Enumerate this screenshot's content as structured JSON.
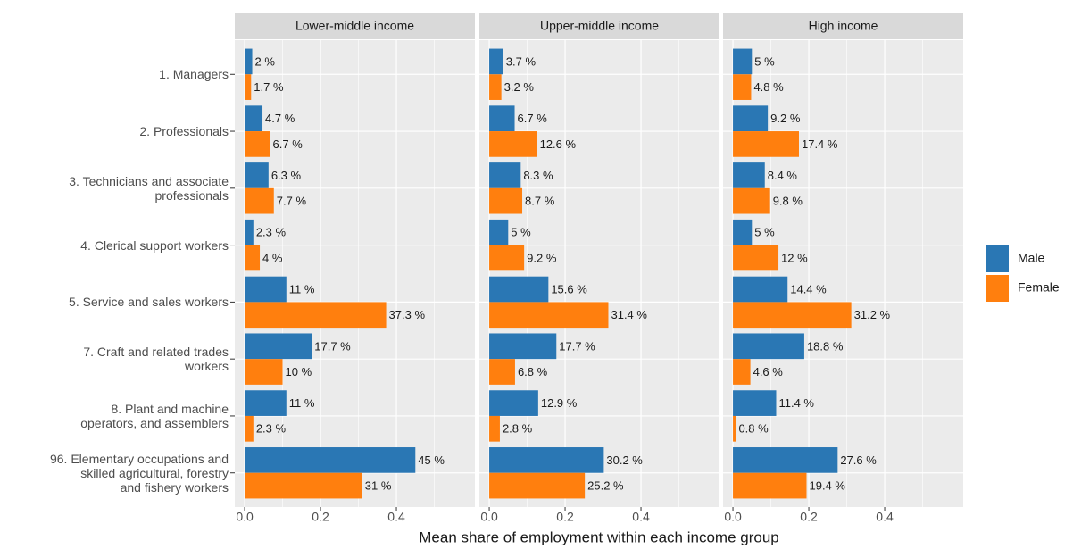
{
  "chart_data": {
    "type": "bar",
    "orientation": "horizontal",
    "xlabel": "Mean share of employment within each income group",
    "facets": [
      "Lower-middle income",
      "Upper-middle income",
      "High income"
    ],
    "categories": [
      "1. Managers",
      "2. Professionals",
      "3. Technicians and associate\nprofessionals",
      "4. Clerical support workers",
      "5. Service and sales workers",
      "7. Craft and related trades\nworkers",
      "8. Plant and machine\noperators, and assemblers",
      "96. Elementary occupations and\nskilled agricultural, forestry\nand fishery workers"
    ],
    "series": [
      {
        "name": "Male",
        "color": "#2a77b4",
        "values": [
          [
            0.02,
            0.047,
            0.063,
            0.023,
            0.11,
            0.177,
            0.11,
            0.45
          ],
          [
            0.037,
            0.067,
            0.083,
            0.05,
            0.156,
            0.177,
            0.129,
            0.302
          ],
          [
            0.05,
            0.092,
            0.084,
            0.05,
            0.144,
            0.188,
            0.114,
            0.276
          ]
        ],
        "value_labels": [
          [
            "2 %",
            "4.7 %",
            "6.3 %",
            "2.3 %",
            "11 %",
            "17.7 %",
            "11 %",
            "45 %"
          ],
          [
            "3.7 %",
            "6.7 %",
            "8.3 %",
            "5 %",
            "15.6 %",
            "17.7 %",
            "12.9 %",
            "30.2 %"
          ],
          [
            "5 %",
            "9.2 %",
            "8.4 %",
            "5 %",
            "14.4 %",
            "18.8 %",
            "11.4 %",
            "27.6 %"
          ]
        ]
      },
      {
        "name": "Female",
        "color": "#ff7f0e",
        "values": [
          [
            0.017,
            0.067,
            0.077,
            0.04,
            0.373,
            0.1,
            0.023,
            0.31
          ],
          [
            0.032,
            0.126,
            0.087,
            0.092,
            0.314,
            0.068,
            0.028,
            0.252
          ],
          [
            0.048,
            0.174,
            0.098,
            0.12,
            0.312,
            0.046,
            0.008,
            0.194
          ]
        ],
        "value_labels": [
          [
            "1.7 %",
            "6.7 %",
            "7.7 %",
            "4 %",
            "37.3 %",
            "10 %",
            "2.3 %",
            "31 %"
          ],
          [
            "3.2 %",
            "12.6 %",
            "8.7 %",
            "9.2 %",
            "31.4 %",
            "6.8 %",
            "2.8 %",
            "25.2 %"
          ],
          [
            "4.8 %",
            "17.4 %",
            "9.8 %",
            "12 %",
            "31.2 %",
            "4.6 %",
            "0.8 %",
            "19.4 %"
          ]
        ]
      }
    ],
    "xlim": [
      -0.026,
      0.607
    ],
    "xticks": [
      {
        "value": 0,
        "label": "0.0"
      },
      0.2,
      0.4
    ],
    "grid": true,
    "legend": "right"
  }
}
